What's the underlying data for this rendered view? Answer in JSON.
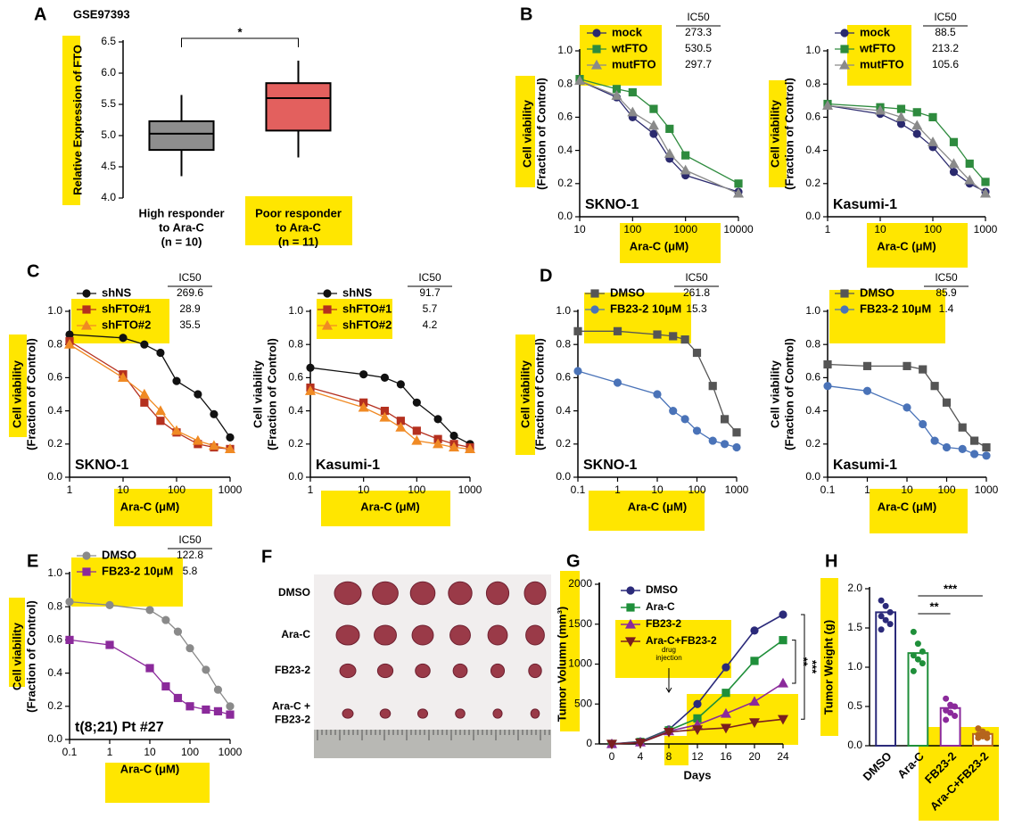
{
  "chart_data": [
    {
      "type": "box",
      "panel": "A",
      "title": "GSE97393",
      "ylabel": "Relative Expression of FTO",
      "categories": [
        [
          "High responder",
          "to Ara-C",
          "(n = 10)"
        ],
        [
          "Poor responder",
          "to Ara-C",
          "(n = 11)"
        ]
      ],
      "boxes": [
        {
          "min": 4.35,
          "q1": 4.77,
          "median": 5.03,
          "q3": 5.23,
          "max": 5.65
        },
        {
          "min": 4.65,
          "q1": 5.08,
          "median": 5.6,
          "q3": 5.84,
          "max": 6.2
        }
      ],
      "colors": [
        "#8e8e8e",
        "#e3605e"
      ],
      "ylim": [
        4.0,
        6.5
      ],
      "yticks": [
        {
          "value": 4,
          "label": "4.0"
        },
        4.5,
        {
          "value": 5,
          "label": "5.0"
        },
        5.5,
        {
          "value": 6,
          "label": "6.0"
        },
        6.5
      ],
      "significance": "*"
    },
    {
      "type": "dose_response",
      "panel": "B",
      "cell_line": "SKNO-1",
      "xlabel": "Ara-C (μM)",
      "ylabel": [
        "Cell viability",
        "(Fraction of Control)"
      ],
      "log_x": true,
      "xlim": [
        10,
        10000
      ],
      "xticks": [
        10,
        100,
        1000,
        10000
      ],
      "ylim": [
        0,
        1
      ],
      "yticks": [
        {
          "value": 0,
          "label": "0.0"
        },
        0.2,
        0.4,
        0.6,
        0.8,
        {
          "value": 1,
          "label": "1.0"
        }
      ],
      "ic50_label": "IC50",
      "x": [
        10,
        50,
        100,
        250,
        500,
        1000,
        10000
      ],
      "series": [
        {
          "name": "mock",
          "color": "#2b2a6e",
          "marker": "circle",
          "ic50": 273.3,
          "values": [
            0.82,
            0.72,
            0.6,
            0.5,
            0.35,
            0.25,
            0.15
          ]
        },
        {
          "name": "wtFTO",
          "color": "#2e8b3e",
          "marker": "square",
          "ic50": 530.5,
          "values": [
            0.83,
            0.77,
            0.75,
            0.65,
            0.53,
            0.37,
            0.2
          ]
        },
        {
          "name": "mutFTO",
          "color": "#8a8a8a",
          "marker": "triangle",
          "ic50": 297.7,
          "values": [
            0.82,
            0.73,
            0.63,
            0.55,
            0.38,
            0.28,
            0.14
          ]
        }
      ]
    },
    {
      "type": "dose_response",
      "cell_line": "Kasumi-1",
      "xlabel": "Ara-C (μM)",
      "ylabel": [
        "Cell viability",
        "(Fraction of Control)"
      ],
      "log_x": true,
      "xlim": [
        1,
        1000
      ],
      "xticks": [
        1,
        10,
        100,
        1000
      ],
      "ylim": [
        0,
        1
      ],
      "yticks": [
        {
          "value": 0,
          "label": "0.0"
        },
        0.2,
        0.4,
        0.6,
        0.8,
        {
          "value": 1,
          "label": "1.0"
        }
      ],
      "ic50_label": "IC50",
      "x": [
        1,
        10,
        25,
        50,
        100,
        250,
        500,
        1000
      ],
      "series": [
        {
          "name": "mock",
          "color": "#2b2a6e",
          "marker": "circle",
          "ic50": 88.5,
          "values": [
            0.67,
            0.62,
            0.56,
            0.5,
            0.42,
            0.27,
            0.2,
            0.15
          ]
        },
        {
          "name": "wtFTO",
          "color": "#2e8b3e",
          "marker": "square",
          "ic50": 213.2,
          "values": [
            0.68,
            0.66,
            0.65,
            0.63,
            0.6,
            0.45,
            0.32,
            0.21
          ]
        },
        {
          "name": "mutFTO",
          "color": "#8a8a8a",
          "marker": "triangle",
          "ic50": 105.6,
          "values": [
            0.67,
            0.64,
            0.6,
            0.55,
            0.45,
            0.32,
            0.22,
            0.14
          ]
        }
      ]
    },
    {
      "type": "dose_response",
      "panel": "C",
      "cell_line": "SKNO-1",
      "xlabel": "Ara-C (μM)",
      "ylabel": [
        "Cell viability",
        "(Fraction of Control)"
      ],
      "log_x": true,
      "xlim": [
        1,
        1000
      ],
      "xticks": [
        1,
        10,
        100,
        1000
      ],
      "ylim": [
        0,
        1
      ],
      "yticks": [
        {
          "value": 0,
          "label": "0.0"
        },
        0.2,
        0.4,
        0.6,
        0.8,
        {
          "value": 1,
          "label": "1.0"
        }
      ],
      "ic50_label": "IC50",
      "x": [
        1,
        10,
        25,
        50,
        100,
        250,
        500,
        1000
      ],
      "series": [
        {
          "name": "shNS",
          "color": "#111111",
          "marker": "circle",
          "ic50": 269.6,
          "values": [
            0.86,
            0.84,
            0.8,
            0.75,
            0.58,
            0.5,
            0.38,
            0.24
          ]
        },
        {
          "name": "shFTO#1",
          "color": "#b5301f",
          "marker": "square",
          "ic50": 28.9,
          "values": [
            0.82,
            0.62,
            0.45,
            0.34,
            0.27,
            0.2,
            0.18,
            0.17
          ]
        },
        {
          "name": "shFTO#2",
          "color": "#f08a24",
          "marker": "triangle",
          "ic50": 35.5,
          "values": [
            0.8,
            0.6,
            0.5,
            0.4,
            0.28,
            0.22,
            0.19,
            0.17
          ]
        }
      ]
    },
    {
      "type": "dose_response",
      "cell_line": "Kasumi-1",
      "xlabel": "Ara-C (μM)",
      "ylabel": [
        "Cell viability",
        "(Fraction of Control)"
      ],
      "log_x": true,
      "xlim": [
        1,
        1000
      ],
      "xticks": [
        1,
        10,
        100,
        1000
      ],
      "ylim": [
        0,
        1
      ],
      "yticks": [
        {
          "value": 0,
          "label": "0.0"
        },
        0.2,
        0.4,
        0.6,
        0.8,
        {
          "value": 1,
          "label": "1.0"
        }
      ],
      "ic50_label": "IC50",
      "x": [
        1,
        10,
        25,
        50,
        100,
        250,
        500,
        1000
      ],
      "series": [
        {
          "name": "shNS",
          "color": "#111111",
          "marker": "circle",
          "ic50": 91.7,
          "values": [
            0.66,
            0.62,
            0.6,
            0.56,
            0.45,
            0.35,
            0.25,
            0.2
          ]
        },
        {
          "name": "shFTO#1",
          "color": "#b5301f",
          "marker": "square",
          "ic50": 5.7,
          "values": [
            0.54,
            0.45,
            0.4,
            0.34,
            0.28,
            0.23,
            0.2,
            0.18
          ]
        },
        {
          "name": "shFTO#2",
          "color": "#f08a24",
          "marker": "triangle",
          "ic50": 4.2,
          "values": [
            0.52,
            0.42,
            0.36,
            0.3,
            0.22,
            0.2,
            0.18,
            0.17
          ]
        }
      ]
    },
    {
      "type": "dose_response",
      "panel": "D",
      "cell_line": "SKNO-1",
      "xlabel": "Ara-C (μM)",
      "ylabel": [
        "Cell viability",
        "(Fraction of Control)"
      ],
      "log_x": true,
      "xlim": [
        0.1,
        1000
      ],
      "xticks": [
        0.1,
        1,
        10,
        100,
        1000
      ],
      "ylim": [
        0,
        1
      ],
      "yticks": [
        {
          "value": 0,
          "label": "0.0"
        },
        0.2,
        0.4,
        0.6,
        0.8,
        {
          "value": 1,
          "label": "1.0"
        }
      ],
      "ic50_label": "IC50",
      "x": [
        0.1,
        1,
        10,
        25,
        50,
        100,
        250,
        500,
        1000
      ],
      "series": [
        {
          "name": "DMSO",
          "color": "#555555",
          "marker": "square",
          "ic50": 261.8,
          "values": [
            0.88,
            0.88,
            0.86,
            0.85,
            0.83,
            0.75,
            0.55,
            0.35,
            0.27
          ]
        },
        {
          "name": "FB23-2 10μM",
          "color": "#4a73b8",
          "marker": "circle",
          "ic50": 15.3,
          "values": [
            0.64,
            0.57,
            0.5,
            0.4,
            0.35,
            0.28,
            0.22,
            0.2,
            0.18
          ]
        }
      ]
    },
    {
      "type": "dose_response",
      "cell_line": "Kasumi-1",
      "xlabel": "Ara-C (μM)",
      "ylabel": [
        "Cell viability",
        "(Fraction of Control)"
      ],
      "log_x": true,
      "xlim": [
        0.1,
        1000
      ],
      "xticks": [
        0.1,
        1,
        10,
        100,
        1000
      ],
      "ylim": [
        0,
        1
      ],
      "yticks": [
        {
          "value": 0,
          "label": "0.0"
        },
        0.2,
        0.4,
        0.6,
        0.8,
        {
          "value": 1,
          "label": "1.0"
        }
      ],
      "ic50_label": "IC50",
      "x": [
        0.1,
        1,
        10,
        25,
        50,
        100,
        250,
        500,
        1000
      ],
      "series": [
        {
          "name": "DMSO",
          "color": "#555555",
          "marker": "square",
          "ic50": 85.9,
          "values": [
            0.68,
            0.67,
            0.67,
            0.65,
            0.55,
            0.45,
            0.3,
            0.22,
            0.18
          ]
        },
        {
          "name": "FB23-2 10μM",
          "color": "#4a73b8",
          "marker": "circle",
          "ic50": 1.4,
          "values": [
            0.55,
            0.52,
            0.42,
            0.32,
            0.22,
            0.18,
            0.17,
            0.14,
            0.13
          ]
        }
      ]
    },
    {
      "type": "dose_response",
      "panel": "E",
      "cell_line": "t(8;21) Pt #27",
      "xlabel": "Ara-C (μM)",
      "ylabel": [
        "Cell viability",
        "(Fraction of Control)"
      ],
      "log_x": true,
      "xlim": [
        0.1,
        1000
      ],
      "xticks": [
        0.1,
        1,
        10,
        100,
        1000
      ],
      "ylim": [
        0,
        1
      ],
      "yticks": [
        {
          "value": 0,
          "label": "0.0"
        },
        0.2,
        0.4,
        0.6,
        0.8,
        {
          "value": 1,
          "label": "1.0"
        }
      ],
      "ic50_label": "IC50",
      "x": [
        0.1,
        1,
        10,
        25,
        50,
        100,
        250,
        500,
        1000
      ],
      "series": [
        {
          "name": "DMSO",
          "color": "#8a8a8a",
          "marker": "circle",
          "ic50": 122.8,
          "values": [
            0.83,
            0.81,
            0.78,
            0.72,
            0.65,
            0.55,
            0.42,
            0.3,
            0.2
          ]
        },
        {
          "name": "FB23-2 10μM",
          "color": "#8b2a9b",
          "marker": "square",
          "ic50": 5.8,
          "values": [
            0.6,
            0.57,
            0.43,
            0.32,
            0.25,
            0.2,
            0.18,
            0.17,
            0.15
          ]
        }
      ]
    },
    {
      "type": "image",
      "panel": "F",
      "row_labels": [
        [
          "DMSO"
        ],
        [
          "Ara-C"
        ],
        [
          "FB23-2"
        ],
        [
          "Ara-C +",
          "FB23-2"
        ]
      ]
    },
    {
      "type": "line",
      "panel": "G",
      "xlabel": "Days",
      "ylabel": "Tumor Volumn (mm³)",
      "x": [
        0,
        4,
        8,
        12,
        16,
        20,
        24
      ],
      "xlim": [
        0,
        24
      ],
      "xticks": [
        0,
        4,
        8,
        12,
        16,
        20,
        24
      ],
      "ylim": [
        0,
        2000
      ],
      "yticks": [
        0,
        500,
        1000,
        1500,
        2000
      ],
      "annotation": [
        "drug",
        "injection"
      ],
      "significance": [
        "**",
        "***"
      ],
      "series": [
        {
          "name": "DMSO",
          "color": "#2b2a7a",
          "marker": "circle",
          "values": [
            0,
            30,
            180,
            500,
            960,
            1420,
            1620
          ]
        },
        {
          "name": "Ara-C",
          "color": "#1f8f3a",
          "marker": "square",
          "values": [
            0,
            25,
            170,
            320,
            640,
            1040,
            1300
          ]
        },
        {
          "name": "FB23-2",
          "color": "#8b2a9b",
          "marker": "triangle",
          "values": [
            0,
            20,
            160,
            240,
            380,
            530,
            760
          ]
        },
        {
          "name": "Ara-C+FB23-2",
          "color": "#7a1f1f",
          "marker": "triangle-down",
          "values": [
            0,
            15,
            150,
            180,
            200,
            270,
            310
          ]
        }
      ]
    },
    {
      "type": "bar",
      "panel": "H",
      "ylabel": "Tumor Weight (g)",
      "categories": [
        "DMSO",
        "Ara-C",
        "FB23-2",
        "Ara-C+FB23-2"
      ],
      "values": [
        1.7,
        1.18,
        0.48,
        0.15
      ],
      "colors": [
        "#2b2a7a",
        "#1f8f3a",
        "#8b2a9b",
        "#b5651d"
      ],
      "points": [
        [
          1.85,
          1.78,
          1.7,
          1.65,
          1.6,
          1.55,
          1.48
        ],
        [
          1.45,
          1.3,
          1.2,
          1.15,
          1.1,
          1.05,
          0.95
        ],
        [
          0.6,
          0.52,
          0.5,
          0.45,
          0.42,
          0.38,
          0.33
        ],
        [
          0.22,
          0.18,
          0.15,
          0.14,
          0.12,
          0.1,
          0.1
        ]
      ],
      "ylim": [
        0,
        2
      ],
      "yticks": [
        {
          "value": 0,
          "label": "0.0"
        },
        0.5,
        {
          "value": 1,
          "label": "1.0"
        },
        1.5,
        {
          "value": 2,
          "label": "2.0"
        }
      ],
      "significance": [
        "**",
        "***"
      ]
    }
  ]
}
